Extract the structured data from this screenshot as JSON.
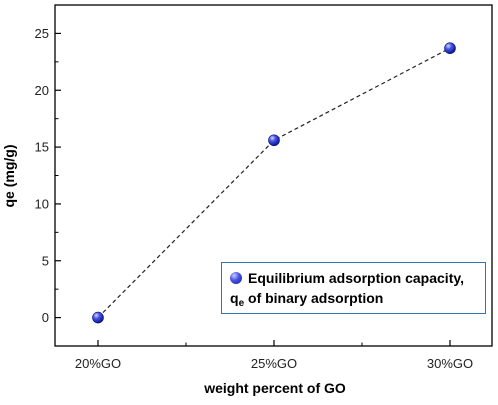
{
  "chart_data": {
    "type": "line",
    "categories": [
      "20%GO",
      "25%GO",
      "30%GO"
    ],
    "series": [
      {
        "name": "Equilibrium adsorption capacity, qe of binary adsorption",
        "values": [
          0.0,
          15.6,
          23.7
        ]
      }
    ],
    "xlabel": "weight percent of GO",
    "ylabel": "qe (mg/g)",
    "ylim": [
      -2.5,
      27.5
    ],
    "yticks": [
      0,
      5,
      10,
      15,
      20,
      25
    ],
    "grid": false,
    "legend_position": "bottom-right",
    "line_style": "dashed",
    "marker_color": "#1a2bd1"
  },
  "legend": {
    "line1": "Equilibrium adsorption capacity,",
    "q": "q",
    "sub": "e",
    "rest": " of binary adsorption"
  }
}
